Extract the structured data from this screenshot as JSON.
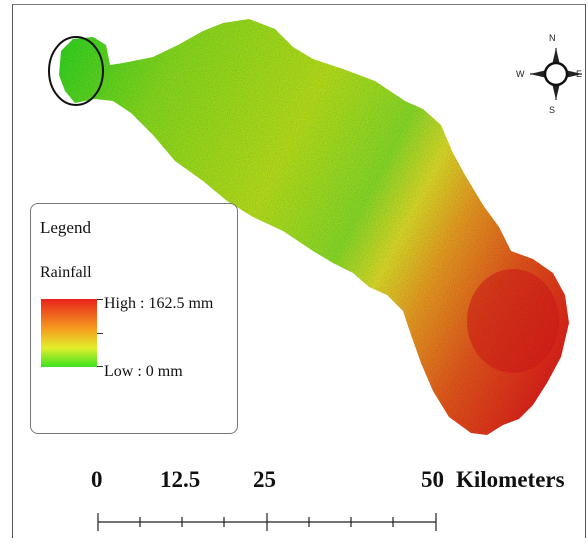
{
  "legend": {
    "title": "Legend",
    "subtitle": "Rainfall",
    "high_label": "High : 162.5 mm",
    "low_label": "Low : 0 mm",
    "ramp_colors": [
      "#e8231b",
      "#f5a020",
      "#e2ee2c",
      "#3de21f"
    ]
  },
  "compass": {
    "north": "N",
    "south": "S",
    "east": "E",
    "west": "W"
  },
  "scale_bar": {
    "labels": [
      "0",
      "12.5",
      "25",
      "50"
    ],
    "unit": "Kilometers"
  },
  "colors": {
    "high_rainfall": "#e8231b",
    "mid_rainfall": "#f5a020",
    "low_rainfall": "#3de21f",
    "highlight_circle": "#111111"
  }
}
